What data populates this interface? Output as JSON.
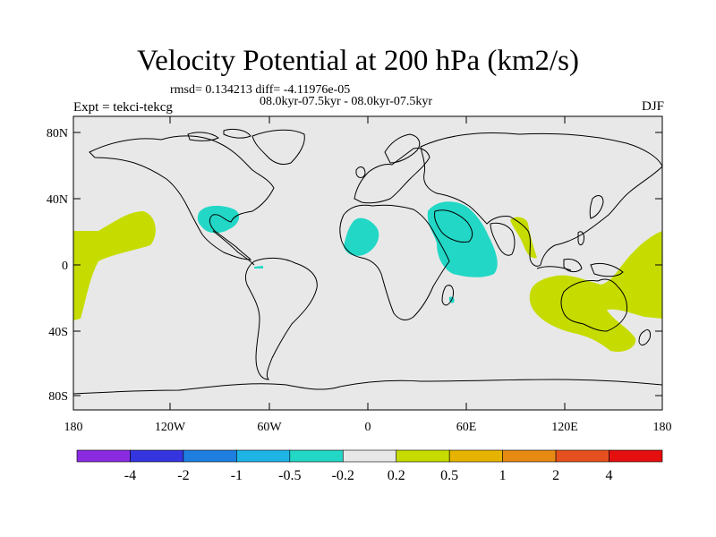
{
  "title": "Velocity Potential at 200 hPa (km2/s)",
  "stats_line": "rmsd= 0.134213 diff= -4.11976e-05",
  "period_line": "08.0kyr-07.5kyr - 08.0kyr-07.5kyr",
  "expt_label": "Expt = tekci-tekcg",
  "season_label": "DJF",
  "lat_labels": [
    "80N",
    "40N",
    "0",
    "40S",
    "80S"
  ],
  "lon_labels": [
    "180",
    "120W",
    "60W",
    "0",
    "60E",
    "120E",
    "180"
  ],
  "colorbar": {
    "colors": [
      "#8a2be2",
      "#3535e0",
      "#1e7fe0",
      "#1eb4e6",
      "#22d7c6",
      "#e8e8e8",
      "#c6dc00",
      "#e6b400",
      "#e68a14",
      "#e6501e",
      "#e60f0f"
    ],
    "labels": [
      "-4",
      "-2",
      "-1",
      "-0.5",
      "-0.2",
      "0.2",
      "0.5",
      "1",
      "2",
      "4"
    ]
  },
  "palette": {
    "background": "#e8e8e8",
    "negative_fill": "#22d7c6",
    "positive_fill": "#c6dc00"
  }
}
